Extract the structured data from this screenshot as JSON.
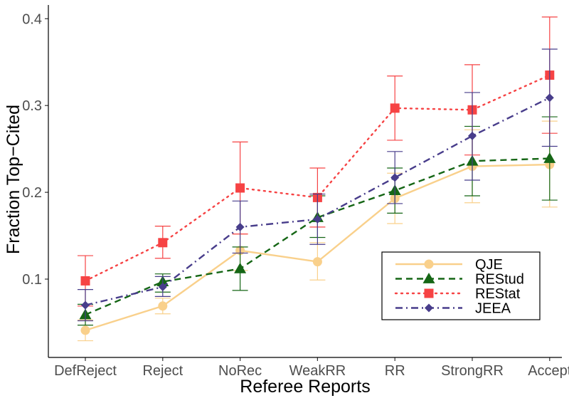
{
  "chart_data": {
    "type": "line",
    "title": "",
    "xlabel": "Referee Reports",
    "ylabel": "Fraction Top−Cited",
    "categories": [
      "DefReject",
      "Reject",
      "NoRec",
      "WeakRR",
      "RR",
      "StrongRR",
      "Accept"
    ],
    "ylim": [
      0.02,
      0.42
    ],
    "yticks": [
      0.1,
      0.2,
      0.3,
      0.4
    ],
    "ytick_labels": [
      "0.1",
      "0.2",
      "0.3",
      "0.4"
    ],
    "grid": false,
    "legend_position": "bottom-right",
    "series": [
      {
        "name": "QJE",
        "color": "#f9d08b",
        "line_style": "solid",
        "marker": "circle",
        "values": [
          0.041,
          0.069,
          0.133,
          0.12,
          0.193,
          0.23,
          0.232
        ],
        "lower": [
          0.029,
          0.06,
          0.11,
          0.099,
          0.164,
          0.188,
          0.183
        ],
        "upper": [
          0.053,
          0.078,
          0.152,
          0.142,
          0.222,
          0.272,
          0.282
        ]
      },
      {
        "name": "REStud",
        "color": "#156615",
        "line_style": "dashed",
        "marker": "triangle",
        "values": [
          0.059,
          0.097,
          0.112,
          0.171,
          0.202,
          0.236,
          0.239
        ],
        "lower": [
          0.047,
          0.085,
          0.087,
          0.148,
          0.176,
          0.196,
          0.191
        ],
        "upper": [
          0.071,
          0.106,
          0.137,
          0.196,
          0.228,
          0.276,
          0.287
        ]
      },
      {
        "name": "REStat",
        "color": "#f64344",
        "line_style": "dotted",
        "marker": "square",
        "values": [
          0.098,
          0.142,
          0.205,
          0.194,
          0.297,
          0.295,
          0.335
        ],
        "lower": [
          0.069,
          0.124,
          0.152,
          0.16,
          0.26,
          0.243,
          0.268
        ],
        "upper": [
          0.127,
          0.161,
          0.258,
          0.228,
          0.334,
          0.347,
          0.402
        ]
      },
      {
        "name": "JEEA",
        "color": "#483d8b",
        "line_style": "dashdot",
        "marker": "diamond",
        "values": [
          0.07,
          0.091,
          0.16,
          0.169,
          0.217,
          0.265,
          0.309
        ],
        "lower": [
          0.052,
          0.08,
          0.13,
          0.14,
          0.187,
          0.214,
          0.253
        ],
        "upper": [
          0.088,
          0.103,
          0.19,
          0.198,
          0.247,
          0.315,
          0.365
        ]
      }
    ]
  }
}
